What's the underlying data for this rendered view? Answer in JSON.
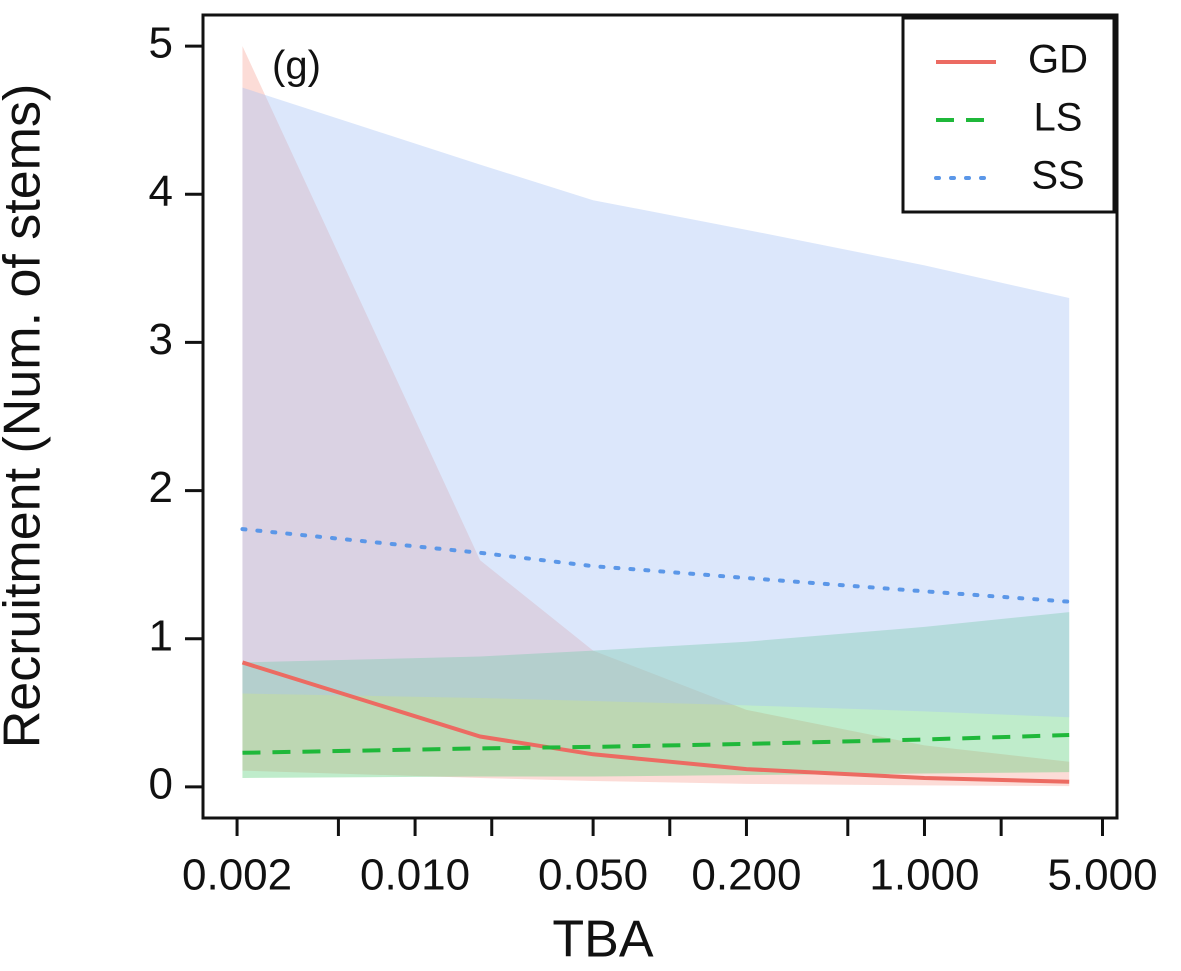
{
  "chart_data": {
    "type": "line",
    "annotation": "(g)",
    "x_label": "TBA",
    "y_label": "Recruitment (Num. of stems)",
    "x_scale": "log",
    "xlim": [
      0.00147,
      5.7
    ],
    "ylim": [
      -0.21,
      5.21
    ],
    "xticks": [
      0.002,
      {
        "value": 0.005,
        "label": null
      },
      {
        "value": 0.01,
        "label": "0.010"
      },
      {
        "value": 0.02,
        "label": null
      },
      {
        "value": 0.05,
        "label": "0.050"
      },
      {
        "value": 0.1,
        "label": null
      },
      {
        "value": 0.2,
        "label": "0.200"
      },
      {
        "value": 0.5,
        "label": null
      },
      {
        "value": 1,
        "label": "1.000"
      },
      {
        "value": 2,
        "label": null
      },
      {
        "value": 5,
        "label": "5.000"
      }
    ],
    "yticks": [
      0,
      1,
      2,
      3,
      4,
      5
    ],
    "legend": "top-right",
    "x": [
      0.0021,
      0.018,
      0.05,
      0.2,
      1.0,
      3.7
    ],
    "series": [
      {
        "name": "GD",
        "color": "#ec6b62",
        "band_color": "#f7a89c",
        "linestyle": "solid",
        "values": [
          0.84,
          0.34,
          0.22,
          0.12,
          0.06,
          0.035
        ],
        "upper": [
          5.0,
          1.53,
          0.92,
          0.52,
          0.28,
          0.17
        ],
        "lower": [
          0.11,
          0.06,
          0.04,
          0.02,
          0.01,
          0.005
        ]
      },
      {
        "name": "LS",
        "color": "#1fb83a",
        "band_color": "#5fd07e",
        "linestyle": "dashed",
        "values": [
          0.23,
          0.26,
          0.27,
          0.29,
          0.32,
          0.35
        ],
        "upper": [
          0.84,
          0.88,
          0.92,
          0.98,
          1.08,
          1.18
        ],
        "lower": [
          0.06,
          0.07,
          0.07,
          0.08,
          0.09,
          0.1
        ]
      },
      {
        "name": "SS",
        "color": "#5b97e8",
        "band_color": "#a8c4f5",
        "linestyle": "dotted",
        "values": [
          1.74,
          1.58,
          1.49,
          1.41,
          1.32,
          1.25
        ],
        "upper": [
          4.72,
          4.2,
          3.96,
          3.76,
          3.52,
          3.3
        ],
        "lower": [
          0.63,
          0.6,
          0.58,
          0.55,
          0.51,
          0.47
        ]
      }
    ]
  }
}
